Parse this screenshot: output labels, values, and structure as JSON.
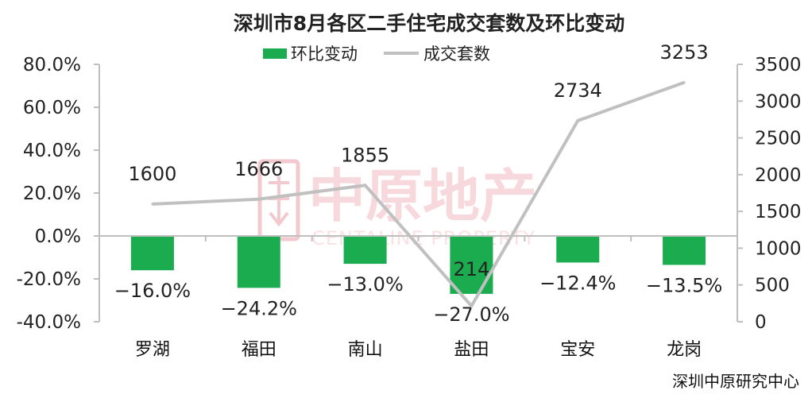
{
  "title": "深圳市8月各区二手住宅成交套数及环比变动",
  "legend": {
    "bar_label": "环比变动",
    "line_label": "成交套数"
  },
  "source": "深圳中原研究中心",
  "watermark": {
    "cn": "中原地产",
    "en": "CENTALINE PROPERTY"
  },
  "colors": {
    "bar": "#1aac4e",
    "line": "#c0c0c0",
    "axis": "#bfbfbf",
    "watermark": "#f2c9cf"
  },
  "chart_data": {
    "type": "bar",
    "categories": [
      "罗湖",
      "福田",
      "南山",
      "盐田",
      "宝安",
      "龙岗"
    ],
    "series": [
      {
        "name": "环比变动",
        "type": "bar",
        "axis": "left",
        "values": [
          -16.0,
          -24.2,
          -13.0,
          -27.0,
          -12.4,
          -13.5
        ],
        "labels": [
          "−16.0%",
          "−24.2%",
          "−13.0%",
          "−27.0%",
          "−12.4%",
          "−13.5%"
        ]
      },
      {
        "name": "成交套数",
        "type": "line",
        "axis": "right",
        "values": [
          1600,
          1666,
          1855,
          214,
          2734,
          3253
        ],
        "labels": [
          "1600",
          "1666",
          "1855",
          "214",
          "2734",
          "3253"
        ]
      }
    ],
    "y_left": {
      "min": -40,
      "max": 80,
      "step": 20,
      "tick_labels": [
        "-40.0%",
        "-20.0%",
        "0.0%",
        "20.0%",
        "40.0%",
        "60.0%",
        "80.0%"
      ]
    },
    "y_right": {
      "min": 0,
      "max": 3500,
      "step": 500,
      "tick_labels": [
        "0",
        "500",
        "1000",
        "1500",
        "2000",
        "2500",
        "3000",
        "3500"
      ]
    },
    "grid": false,
    "legend_position": "top"
  }
}
